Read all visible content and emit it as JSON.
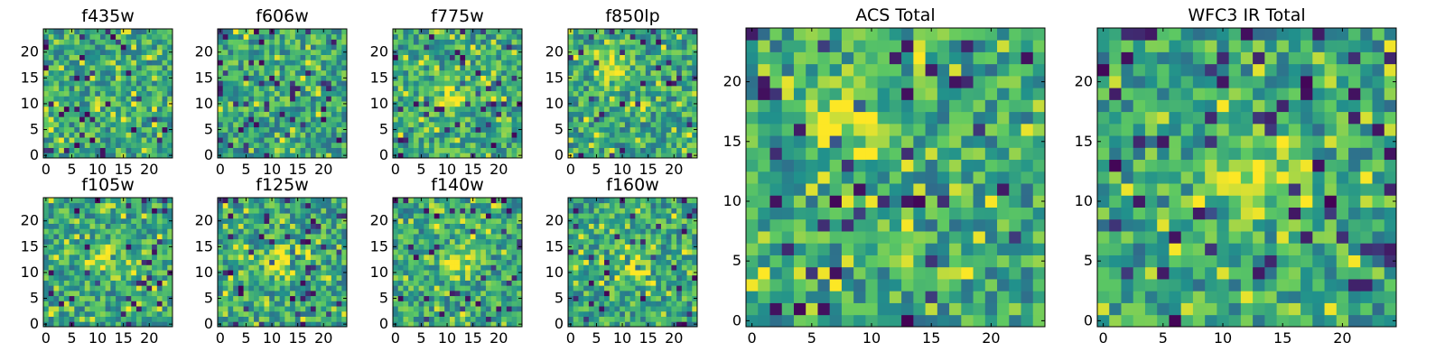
{
  "colormap": [
    "#440154",
    "#3b528b",
    "#21918c",
    "#5ec962",
    "#fde725"
  ],
  "chart_data": [
    {
      "type": "heatmap",
      "title": "f435w",
      "rows": 25,
      "cols": 25,
      "xticks": [
        0,
        5,
        10,
        15,
        20
      ],
      "yticks": [
        0,
        5,
        10,
        15,
        20
      ],
      "xlim": [
        -0.5,
        24.5
      ],
      "ylim": [
        -0.5,
        24.5
      ],
      "seed": 11,
      "hotspot": null
    },
    {
      "type": "heatmap",
      "title": "f606w",
      "rows": 25,
      "cols": 25,
      "xticks": [
        0,
        5,
        10,
        15,
        20
      ],
      "yticks": [
        0,
        5,
        10,
        15,
        20
      ],
      "xlim": [
        -0.5,
        24.5
      ],
      "ylim": [
        -0.5,
        24.5
      ],
      "seed": 23,
      "hotspot": null
    },
    {
      "type": "heatmap",
      "title": "f775w",
      "rows": 25,
      "cols": 25,
      "xticks": [
        0,
        5,
        10,
        15,
        20
      ],
      "yticks": [
        0,
        5,
        10,
        15,
        20
      ],
      "xlim": [
        -0.5,
        24.5
      ],
      "ylim": [
        -0.5,
        24.5
      ],
      "seed": 37,
      "hotspot": [
        12,
        12
      ]
    },
    {
      "type": "heatmap",
      "title": "f850lp",
      "rows": 25,
      "cols": 25,
      "xticks": [
        0,
        5,
        10,
        15,
        20
      ],
      "yticks": [
        0,
        5,
        10,
        15,
        20
      ],
      "xlim": [
        -0.5,
        24.5
      ],
      "ylim": [
        -0.5,
        24.5
      ],
      "seed": 41,
      "hotspot": [
        8,
        17
      ]
    },
    {
      "type": "heatmap",
      "title": "f105w",
      "rows": 25,
      "cols": 25,
      "xticks": [
        0,
        5,
        10,
        15,
        20
      ],
      "yticks": [
        0,
        5,
        10,
        15,
        20
      ],
      "xlim": [
        -0.5,
        24.5
      ],
      "ylim": [
        -0.5,
        24.5
      ],
      "seed": 53,
      "hotspot": [
        12,
        12
      ]
    },
    {
      "type": "heatmap",
      "title": "f125w",
      "rows": 25,
      "cols": 25,
      "xticks": [
        0,
        5,
        10,
        15,
        20
      ],
      "yticks": [
        0,
        5,
        10,
        15,
        20
      ],
      "xlim": [
        -0.5,
        24.5
      ],
      "ylim": [
        -0.5,
        24.5
      ],
      "seed": 67,
      "hotspot": [
        12,
        12
      ]
    },
    {
      "type": "heatmap",
      "title": "f140w",
      "rows": 25,
      "cols": 25,
      "xticks": [
        0,
        5,
        10,
        15,
        20
      ],
      "yticks": [
        0,
        5,
        10,
        15,
        20
      ],
      "xlim": [
        -0.5,
        24.5
      ],
      "ylim": [
        -0.5,
        24.5
      ],
      "seed": 71,
      "hotspot": [
        12,
        12
      ]
    },
    {
      "type": "heatmap",
      "title": "f160w",
      "rows": 25,
      "cols": 25,
      "xticks": [
        0,
        5,
        10,
        15,
        20
      ],
      "yticks": [
        0,
        5,
        10,
        15,
        20
      ],
      "xlim": [
        -0.5,
        24.5
      ],
      "ylim": [
        -0.5,
        24.5
      ],
      "seed": 83,
      "hotspot": [
        12,
        12
      ]
    },
    {
      "type": "heatmap",
      "title": "ACS Total",
      "rows": 25,
      "cols": 25,
      "xticks": [
        0,
        5,
        10,
        15,
        20
      ],
      "yticks": [
        0,
        5,
        10,
        15,
        20
      ],
      "xlim": [
        -0.5,
        24.5
      ],
      "ylim": [
        -0.5,
        24.5
      ],
      "seed": 97,
      "hotspot": [
        8,
        17
      ]
    },
    {
      "type": "heatmap",
      "title": "WFC3 IR Total",
      "rows": 25,
      "cols": 25,
      "xticks": [
        0,
        5,
        10,
        15,
        20
      ],
      "yticks": [
        0,
        5,
        10,
        15,
        20
      ],
      "xlim": [
        -0.5,
        24.5
      ],
      "ylim": [
        -0.5,
        24.5
      ],
      "seed": 101,
      "hotspot": [
        12,
        12
      ]
    }
  ]
}
